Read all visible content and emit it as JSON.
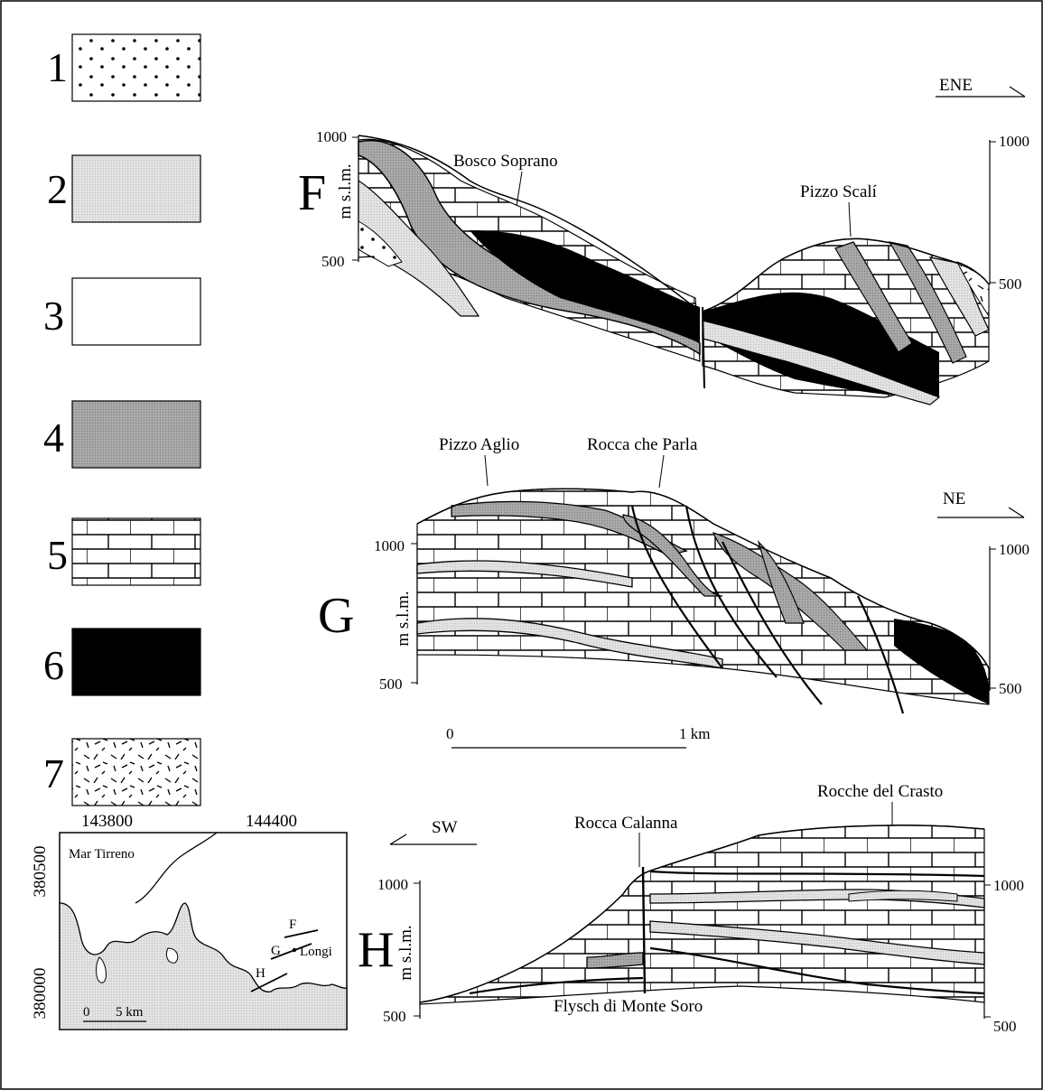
{
  "legend": [
    {
      "number": "1",
      "pattern": "dots"
    },
    {
      "number": "2",
      "pattern": "light-grey"
    },
    {
      "number": "3",
      "pattern": "white"
    },
    {
      "number": "4",
      "pattern": "dark-grey"
    },
    {
      "number": "5",
      "pattern": "limestone-bricks"
    },
    {
      "number": "6",
      "pattern": "black"
    },
    {
      "number": "7",
      "pattern": "dashes"
    }
  ],
  "sections": {
    "F": {
      "letter": "F",
      "axis_label": "m s.l.m.",
      "left_ticks": [
        "1000",
        "500"
      ],
      "right_ticks": [
        "1000",
        "500"
      ],
      "direction": "ENE",
      "places": [
        "Bosco Soprano",
        "Pizzo Scalí"
      ]
    },
    "G": {
      "letter": "G",
      "axis_label": "m s.l.m.",
      "left_ticks": [
        "1000",
        "500"
      ],
      "right_ticks": [
        "1000",
        "500"
      ],
      "direction": "NE",
      "places": [
        "Pizzo Aglio",
        "Rocca che Parla"
      ],
      "scale": {
        "start": "0",
        "end": "1 km"
      }
    },
    "H": {
      "letter": "H",
      "axis_label": "m s.l.m.",
      "left_ticks": [
        "1000",
        "500"
      ],
      "right_ticks": [
        "1000",
        "500"
      ],
      "direction": "SW",
      "places": [
        "Rocche del Crasto",
        "Rocca Calanna",
        "Flysch di Monte Soro"
      ]
    }
  },
  "map": {
    "x_coords": [
      "143800",
      "144400"
    ],
    "y_coords": [
      "380500",
      "380000"
    ],
    "sea": "Mar Tirreno",
    "town": "Longi",
    "trace_labels": [
      "F",
      "G",
      "H"
    ],
    "scale": {
      "start": "0",
      "end": "5 km"
    }
  },
  "colors": {
    "light_grey": "#e2e2e2",
    "dark_grey": "#a8a8a8",
    "black": "#000000"
  }
}
